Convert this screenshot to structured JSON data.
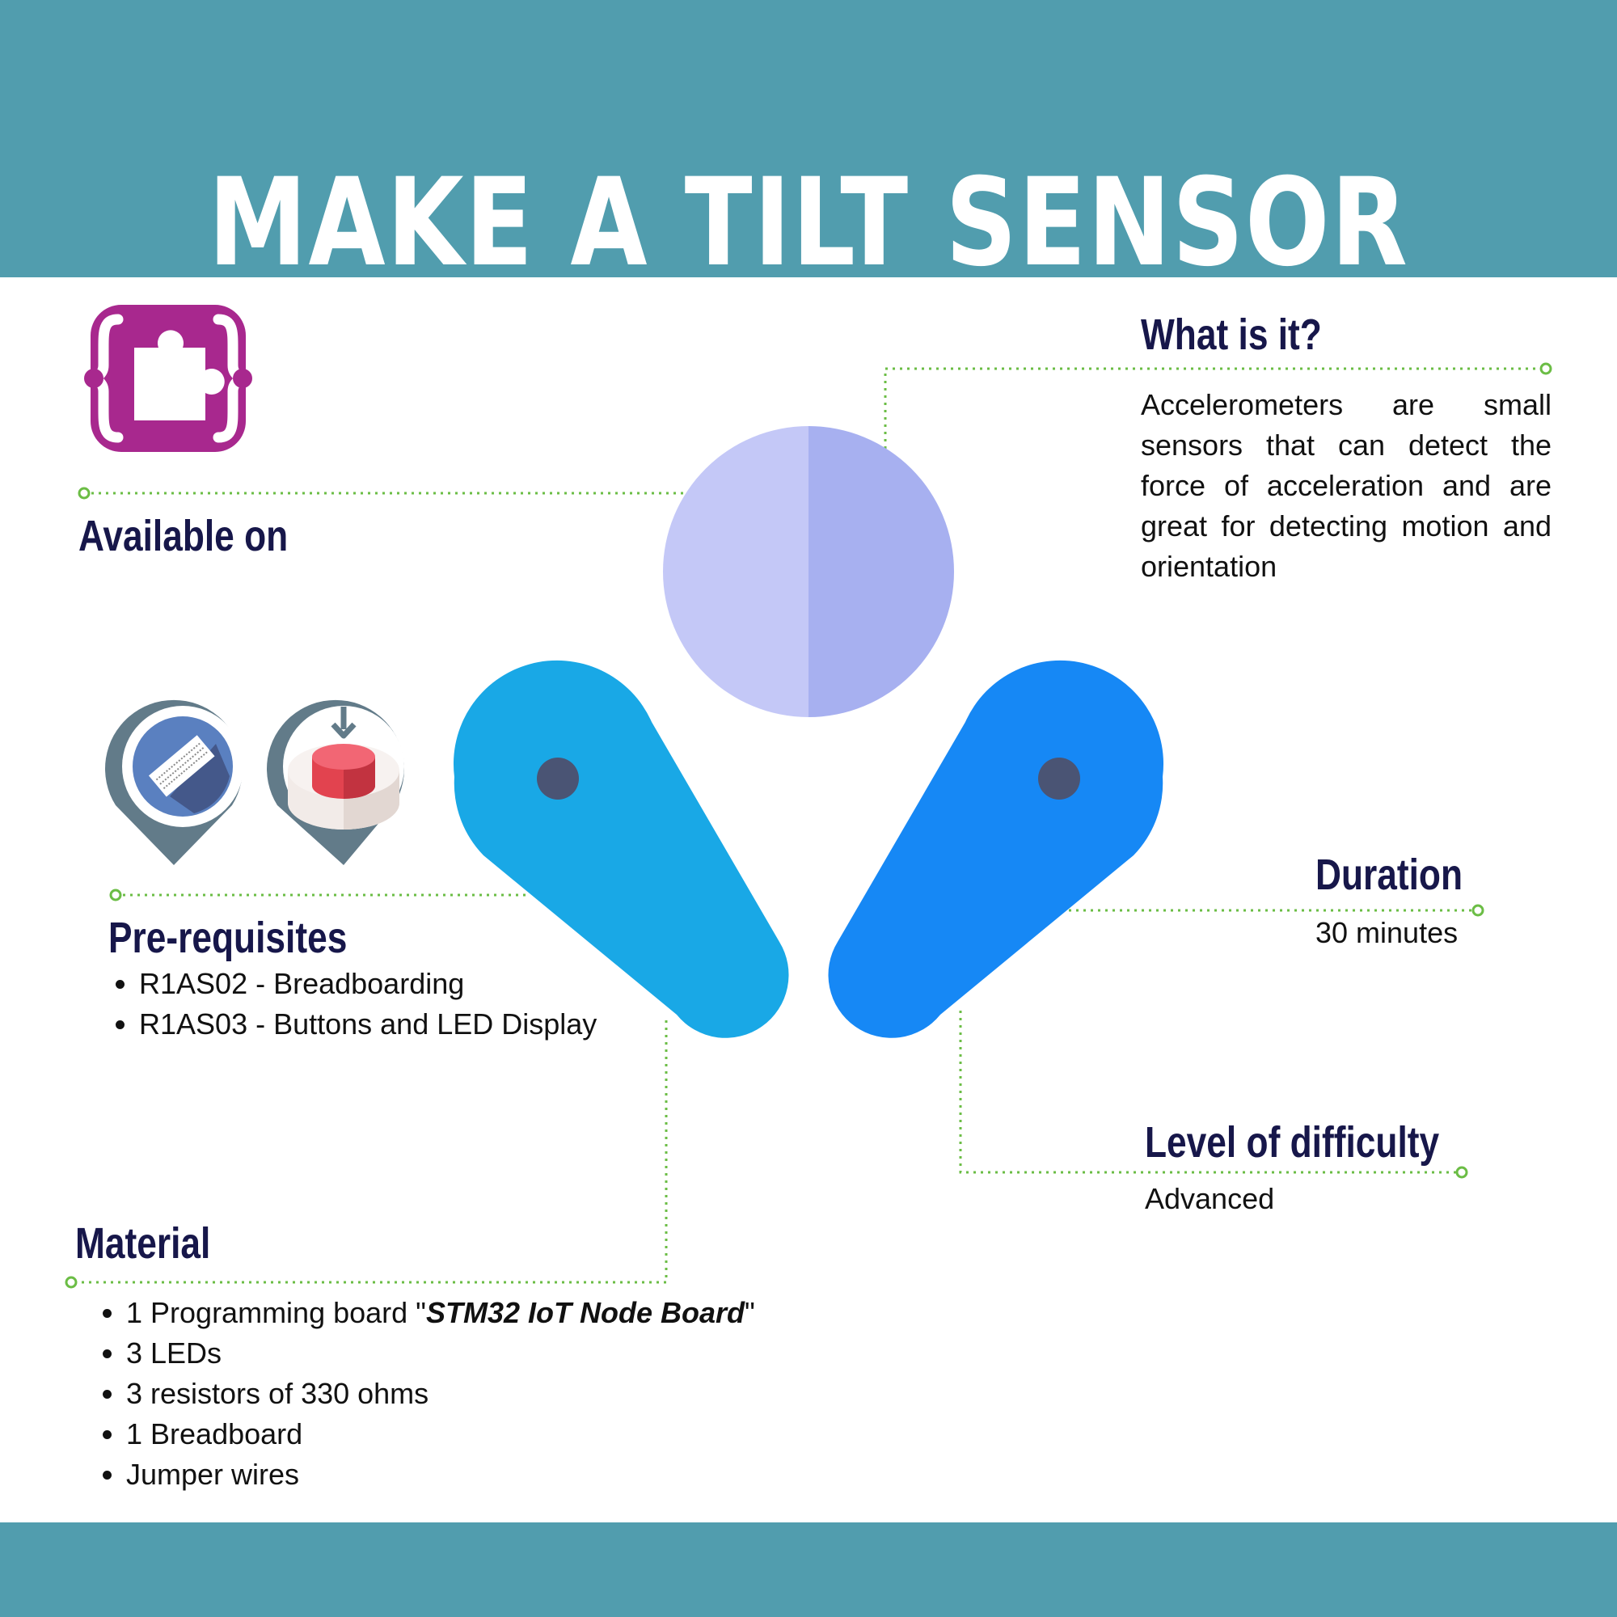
{
  "title": "MAKE A TILT SENSOR",
  "colors": {
    "banner": "#519dae",
    "heading": "#17174a",
    "connector": "#6bbd45",
    "logo": "#a8288e",
    "circle_left": "#c4c8f7",
    "circle_right": "#a7b0f0",
    "handle_left": "#19a8e6",
    "handle_right": "#1688f5",
    "pivot": "#4a5474"
  },
  "available_on": {
    "heading": "Available on",
    "logo_icon": "puzzle-braces-icon",
    "platform_icons": [
      "breadboard-icon",
      "push-button-icon"
    ]
  },
  "what_is_it": {
    "heading": "What is it?",
    "text": "Accelerometers are small sensors that can detect the force of acceleration and are great for detecting motion and orientation"
  },
  "prerequisites": {
    "heading": "Pre-requisites",
    "items": [
      "R1AS02 - Breadboarding",
      "R1AS03 - Buttons and LED Display"
    ]
  },
  "duration": {
    "heading": "Duration",
    "value": "30 minutes"
  },
  "difficulty": {
    "heading": "Level of difficulty",
    "value": "Advanced"
  },
  "material": {
    "heading": "Material",
    "first_item_prefix": "1 Programming board \"",
    "board_name": "STM32 IoT Node Board",
    "first_item_suffix": "\"",
    "items": [
      "3 LEDs",
      "3 resistors of 330 ohms",
      "1 Breadboard",
      "Jumper wires"
    ]
  }
}
